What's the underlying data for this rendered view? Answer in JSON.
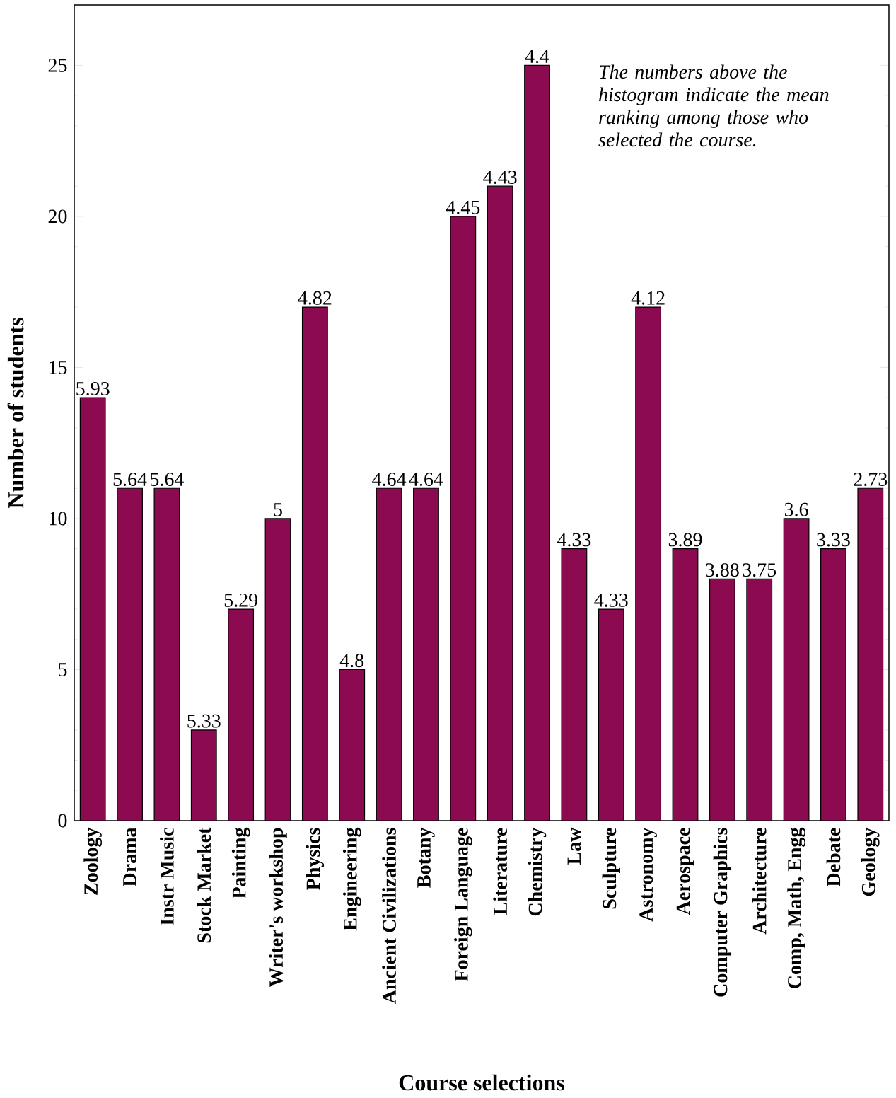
{
  "chart_data": {
    "type": "bar",
    "xlabel": "Course selections",
    "ylabel": "Number of students",
    "categories": [
      "Zoology",
      "Drama",
      "Instr Music",
      "Stock Market",
      "Painting",
      "Writer's workshop",
      "Physics",
      "Engineering",
      "Ancient Civilizations",
      "Botany",
      "Foreign Language",
      "Literature",
      "Chemistry",
      "Law",
      "Sculpture",
      "Astronomy",
      "Aerospace",
      "Computer Graphics",
      "Architecture",
      "Comp, Math, Engg",
      "Debate",
      "Geology"
    ],
    "values": [
      14,
      11,
      11,
      3,
      7,
      10,
      17,
      5,
      11,
      11,
      20,
      21,
      25,
      9,
      7,
      17,
      9,
      8,
      8,
      10,
      9,
      11
    ],
    "color": "#8b0a50",
    "ylim": [
      0,
      27
    ],
    "yticks": [
      0,
      5,
      10,
      15,
      20,
      25
    ],
    "annotations": [
      {
        "text": "5.93",
        "x": "Zoology",
        "y": 14
      },
      {
        "text": "5.64",
        "x": "Drama",
        "y": 11
      },
      {
        "text": "5.64",
        "x": "Instr Music",
        "y": 11
      },
      {
        "text": "5.33",
        "x": "Stock Market",
        "y": 3
      },
      {
        "text": "5.29",
        "x": "Painting",
        "y": 7
      },
      {
        "text": "5",
        "x": "Writer's workshop",
        "y": 10
      },
      {
        "text": "4.82",
        "x": "Physics",
        "y": 17
      },
      {
        "text": "4.8",
        "x": "Engineering",
        "y": 5
      },
      {
        "text": "4.64",
        "x": "Ancient Civilizations",
        "y": 11
      },
      {
        "text": "4.64",
        "x": "Botany",
        "y": 11
      },
      {
        "text": "4.45",
        "x": "Foreign Language",
        "y": 20
      },
      {
        "text": "4.43",
        "x": "Literature",
        "y": 21
      },
      {
        "text": "4.4",
        "x": "Chemistry",
        "y": 25
      },
      {
        "text": "4.33",
        "x": "Law",
        "y": 9
      },
      {
        "text": "4.33",
        "x": "Sculpture",
        "y": 7
      },
      {
        "text": "4.12",
        "x": "Astronomy",
        "y": 17
      },
      {
        "text": "3.89",
        "x": "Aerospace",
        "y": 9
      },
      {
        "text": "3.88",
        "x": "Computer Graphics",
        "y": 8
      },
      {
        "text": "3.75",
        "x": "Architecture",
        "y": 8
      },
      {
        "text": "3.6",
        "x": "Comp, Math, Engg",
        "y": 10
      },
      {
        "text": "3.33",
        "x": "Debate",
        "y": 9
      },
      {
        "text": "2.73",
        "x": "Geology",
        "y": 11
      },
      "The numbers above the histogram indicate the mean ranking among those who selected the course."
    ]
  }
}
